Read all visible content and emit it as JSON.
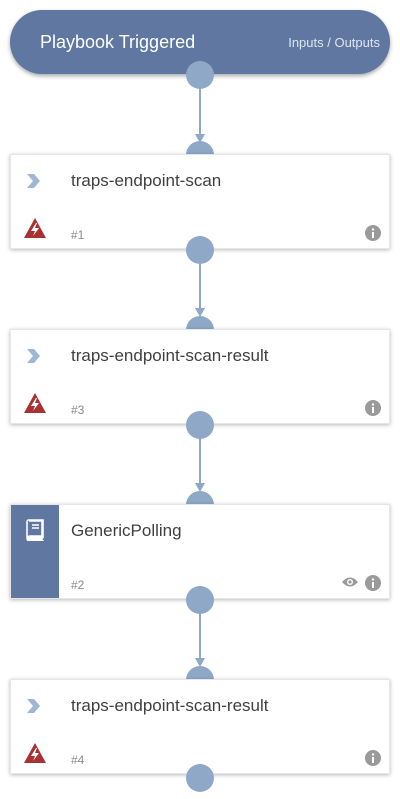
{
  "trigger": {
    "title": "Playbook Triggered",
    "link": "Inputs / Outputs"
  },
  "tasks": [
    {
      "name": "traps-endpoint-scan",
      "number": "#1",
      "type": "command"
    },
    {
      "name": "traps-endpoint-scan-result",
      "number": "#3",
      "type": "command"
    },
    {
      "name": "GenericPolling",
      "number": "#2",
      "type": "playbook"
    },
    {
      "name": "traps-endpoint-scan-result",
      "number": "#4",
      "type": "command"
    }
  ],
  "colors": {
    "accent": "#5f77a1",
    "connector": "#8fa8c8",
    "alert": "#a83232",
    "chevron": "#9fb6d4"
  },
  "icons": [
    "chevron-right-icon",
    "alert-icon",
    "info-icon",
    "eye-icon",
    "book-icon"
  ]
}
